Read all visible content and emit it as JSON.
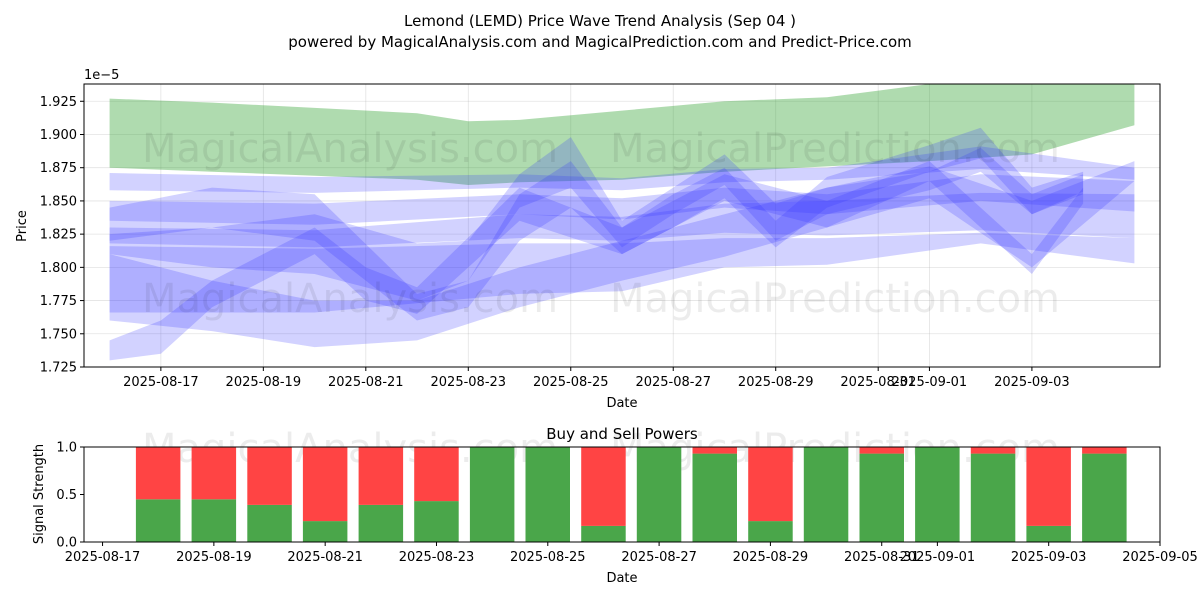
{
  "chart_data": [
    {
      "type": "area",
      "title": "Lemond (LEMD) Price Wave Trend Analysis (Sep 04 )",
      "subtitle": "powered by MagicalAnalysis.com and MagicalPrediction.com and Predict-Price.com",
      "xlabel": "Date",
      "ylabel": "Price",
      "y_exponent_label": "1e−5",
      "ylim": [
        1.725,
        1.938
      ],
      "xlim": [
        "2025-08-15T12:00",
        "2025-09-05T12:00"
      ],
      "x_ticks": [
        "2025-08-17",
        "2025-08-19",
        "2025-08-21",
        "2025-08-23",
        "2025-08-25",
        "2025-08-27",
        "2025-08-29",
        "2025-08-31",
        "2025-09-01",
        "2025-09-03"
      ],
      "x_tick_labels": [
        "2025-08-17",
        "2025-08-19",
        "2025-08-21",
        "2025-08-23",
        "2025-08-25",
        "2025-08-27",
        "2025-08-29",
        "2025-08-31",
        "2025-09-01",
        "2025-09-03"
      ],
      "y_ticks": [
        1.725,
        1.75,
        1.775,
        1.8,
        1.825,
        1.85,
        1.875,
        1.9,
        1.925
      ],
      "y_tick_labels": [
        "1.725",
        "1.750",
        "1.775",
        "1.800",
        "1.825",
        "1.850",
        "1.875",
        "1.900",
        "1.925"
      ],
      "grid": true,
      "watermarks": [
        "MagicalAnalysis.com",
        "MagicalPrediction.com"
      ],
      "colors": {
        "green_band": "#2ca02c",
        "blue_band": "#3030ff"
      },
      "green_band": {
        "dates": [
          "2025-08-16",
          "2025-08-18",
          "2025-08-20",
          "2025-08-22",
          "2025-08-23",
          "2025-08-24",
          "2025-08-26",
          "2025-08-28",
          "2025-08-30",
          "2025-09-01",
          "2025-09-03",
          "2025-09-05"
        ],
        "upper": [
          1.927,
          1.924,
          1.92,
          1.916,
          1.91,
          1.911,
          1.918,
          1.925,
          1.928,
          1.938,
          1.938,
          1.938
        ],
        "lower": [
          1.875,
          1.872,
          1.869,
          1.866,
          1.862,
          1.864,
          1.866,
          1.872,
          1.876,
          1.88,
          1.885,
          1.907
        ]
      },
      "blue_bands": [
        {
          "dates": [
            "2025-08-16",
            "2025-08-20",
            "2025-08-24",
            "2025-08-26",
            "2025-08-28",
            "2025-08-30",
            "2025-09-02",
            "2025-09-05"
          ],
          "upper": [
            1.871,
            1.868,
            1.87,
            1.867,
            1.874,
            1.875,
            1.891,
            1.875
          ],
          "lower": [
            1.858,
            1.856,
            1.86,
            1.858,
            1.864,
            1.866,
            1.874,
            1.866
          ]
        },
        {
          "dates": [
            "2025-08-16",
            "2025-08-20",
            "2025-08-24",
            "2025-08-26",
            "2025-08-28",
            "2025-08-30",
            "2025-09-02",
            "2025-09-05"
          ],
          "upper": [
            1.85,
            1.848,
            1.855,
            1.852,
            1.86,
            1.855,
            1.87,
            1.865
          ],
          "lower": [
            1.835,
            1.832,
            1.84,
            1.836,
            1.845,
            1.84,
            1.85,
            1.842
          ]
        },
        {
          "dates": [
            "2025-08-16",
            "2025-08-20",
            "2025-08-24",
            "2025-08-26",
            "2025-08-28",
            "2025-08-30",
            "2025-09-02",
            "2025-09-05"
          ],
          "upper": [
            1.83,
            1.828,
            1.84,
            1.838,
            1.848,
            1.85,
            1.856,
            1.855
          ],
          "lower": [
            1.818,
            1.815,
            1.822,
            1.82,
            1.826,
            1.824,
            1.828,
            1.822
          ]
        },
        {
          "dates": [
            "2025-08-16",
            "2025-08-20",
            "2025-08-24",
            "2025-08-26",
            "2025-08-28",
            "2025-08-30",
            "2025-09-02",
            "2025-09-05"
          ],
          "upper": [
            1.816,
            1.814,
            1.818,
            1.818,
            1.822,
            1.822,
            1.826,
            1.822
          ],
          "lower": [
            1.766,
            1.766,
            1.78,
            1.782,
            1.8,
            1.802,
            1.818,
            1.803
          ]
        },
        {
          "dates": [
            "2025-08-16",
            "2025-08-18",
            "2025-08-20",
            "2025-08-22",
            "2025-08-23",
            "2025-08-24",
            "2025-08-25",
            "2025-08-26",
            "2025-08-27",
            "2025-08-28",
            "2025-08-29",
            "2025-08-30",
            "2025-09-01",
            "2025-09-02",
            "2025-09-03",
            "2025-09-04"
          ],
          "upper": [
            1.825,
            1.83,
            1.84,
            1.818,
            1.82,
            1.87,
            1.898,
            1.835,
            1.86,
            1.885,
            1.848,
            1.86,
            1.872,
            1.89,
            1.855,
            1.87
          ],
          "lower": [
            1.81,
            1.8,
            1.795,
            1.775,
            1.79,
            1.845,
            1.86,
            1.815,
            1.84,
            1.862,
            1.82,
            1.84,
            1.858,
            1.872,
            1.84,
            1.857
          ]
        },
        {
          "dates": [
            "2025-08-16",
            "2025-08-18",
            "2025-08-20",
            "2025-08-22",
            "2025-08-23",
            "2025-08-24",
            "2025-08-25",
            "2025-08-26",
            "2025-08-27",
            "2025-08-28",
            "2025-08-29",
            "2025-08-30",
            "2025-09-01",
            "2025-09-02",
            "2025-09-03",
            "2025-09-04"
          ],
          "upper": [
            1.845,
            1.86,
            1.855,
            1.78,
            1.79,
            1.855,
            1.88,
            1.83,
            1.855,
            1.875,
            1.835,
            1.868,
            1.892,
            1.905,
            1.86,
            1.872
          ],
          "lower": [
            1.82,
            1.83,
            1.82,
            1.76,
            1.77,
            1.82,
            1.845,
            1.81,
            1.83,
            1.852,
            1.815,
            1.845,
            1.872,
            1.882,
            1.84,
            1.855
          ]
        },
        {
          "dates": [
            "2025-08-16",
            "2025-08-18",
            "2025-08-20",
            "2025-08-22",
            "2025-08-24",
            "2025-08-26",
            "2025-08-28",
            "2025-08-30",
            "2025-09-01",
            "2025-09-03",
            "2025-09-05"
          ],
          "upper": [
            1.81,
            1.79,
            1.775,
            1.775,
            1.8,
            1.82,
            1.84,
            1.86,
            1.876,
            1.85,
            1.88
          ],
          "lower": [
            1.76,
            1.752,
            1.74,
            1.745,
            1.77,
            1.79,
            1.808,
            1.83,
            1.852,
            1.8,
            1.865
          ]
        },
        {
          "dates": [
            "2025-08-16",
            "2025-08-17",
            "2025-08-18",
            "2025-08-20",
            "2025-08-21",
            "2025-08-22",
            "2025-08-24",
            "2025-08-26",
            "2025-08-28",
            "2025-08-30",
            "2025-09-01",
            "2025-09-03",
            "2025-09-04"
          ],
          "upper": [
            1.745,
            1.76,
            1.79,
            1.83,
            1.8,
            1.785,
            1.86,
            1.83,
            1.87,
            1.85,
            1.88,
            1.81,
            1.86
          ],
          "lower": [
            1.73,
            1.735,
            1.77,
            1.81,
            1.775,
            1.765,
            1.835,
            1.81,
            1.85,
            1.83,
            1.865,
            1.795,
            1.848
          ]
        }
      ]
    },
    {
      "type": "bar",
      "title": "Buy and Sell Powers",
      "xlabel": "Date",
      "ylabel": "Signal Strength",
      "ylim": [
        0,
        1.0
      ],
      "xlim": [
        "2025-08-16T16:00",
        "2025-09-05T00:00"
      ],
      "x_ticks": [
        "2025-08-17",
        "2025-08-19",
        "2025-08-21",
        "2025-08-23",
        "2025-08-25",
        "2025-08-27",
        "2025-08-29",
        "2025-08-31",
        "2025-09-01",
        "2025-09-03",
        "2025-09-05"
      ],
      "x_tick_labels": [
        "2025-08-17",
        "2025-08-19",
        "2025-08-21",
        "2025-08-23",
        "2025-08-25",
        "2025-08-27",
        "2025-08-29",
        "2025-08-31",
        "2025-09-01",
        "2025-09-03",
        "2025-09-05"
      ],
      "y_ticks": [
        0.0,
        0.5,
        1.0
      ],
      "y_tick_labels": [
        "0.0",
        "0.5",
        "1.0"
      ],
      "colors": {
        "buy": "#4aa64a",
        "sell": "#ff4444"
      },
      "categories": [
        "2025-08-18",
        "2025-08-19",
        "2025-08-20",
        "2025-08-21",
        "2025-08-22",
        "2025-08-23",
        "2025-08-24",
        "2025-08-25",
        "2025-08-26",
        "2025-08-27",
        "2025-08-28",
        "2025-08-29",
        "2025-08-30",
        "2025-08-31",
        "2025-09-01",
        "2025-09-02",
        "2025-09-03",
        "2025-09-04"
      ],
      "series": [
        {
          "values": [
            0.45,
            0.45,
            0.39,
            0.22,
            0.39,
            0.43,
            1.0,
            1.0,
            0.17,
            1.0,
            0.93,
            0.22,
            1.0,
            0.93,
            1.0,
            0.93,
            0.17,
            0.93
          ]
        },
        {
          "values": [
            0.55,
            0.55,
            0.61,
            0.78,
            0.61,
            0.57,
            0.0,
            0.0,
            0.83,
            0.0,
            0.07,
            0.78,
            0.0,
            0.07,
            0.0,
            0.07,
            0.83,
            0.07
          ]
        }
      ]
    }
  ]
}
